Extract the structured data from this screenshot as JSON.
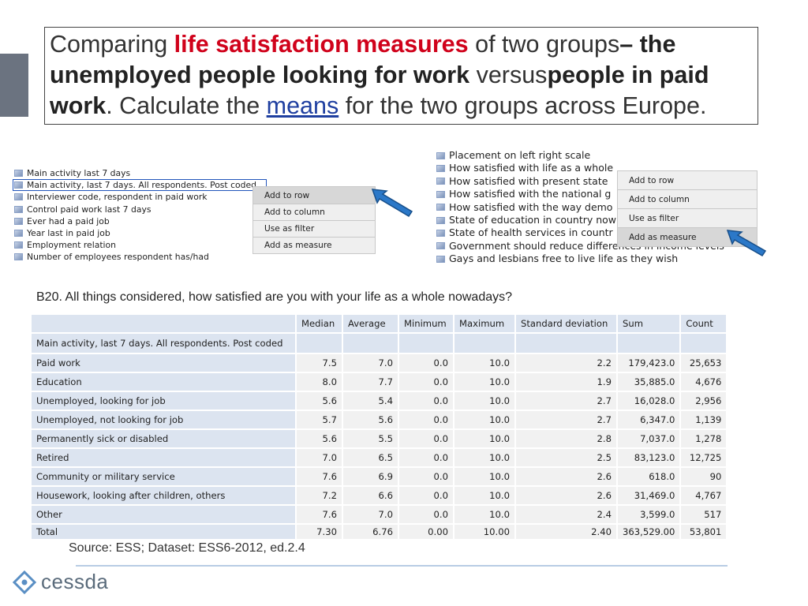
{
  "slide": {
    "title_parts": {
      "p1": "Comparing",
      "p2": "life satisfaction measures",
      "p3": "of two groups",
      "p4": "– the",
      "p5": "unemployed people looking for work",
      "p6": "versus",
      "p7": "people in paid work",
      "p8": ". Calculate the",
      "p9": "means",
      "p10": "for the two groups across Europe."
    },
    "question": "B20. All things considered, how satisfied are you with your life as a whole nowadays?",
    "source": "Source: ESS; Dataset: ESS6-2012, ed.2.4",
    "logo_text": "cessda"
  },
  "panel_left": {
    "variables": [
      "Main activity last 7 days",
      "Main activity, last 7 days. All respondents. Post coded",
      "Interviewer code, respondent in paid work",
      "Control paid work last 7 days",
      "Ever had a paid job",
      "Year last in paid job",
      "Employment relation",
      "Number of employees respondent has/had"
    ],
    "selected_index": 1,
    "menu": [
      "Add to row",
      "Add to column",
      "Use as filter",
      "Add as measure"
    ],
    "highlighted_index": 0
  },
  "panel_right": {
    "variables": [
      "Placement on left right scale",
      "How satisfied with life as a whole",
      "How satisfied with present state",
      "How satisfied with the national g",
      "How satisfied with the way demo",
      "State of education in country now",
      "State of health services in countr",
      "Government should reduce differences in income levels",
      "Gays and lesbians free to live life as they wish"
    ],
    "menu": [
      "Add to row",
      "Add to column",
      "Use as filter",
      "Add as measure"
    ],
    "highlighted_index": 3
  },
  "table": {
    "columns": [
      "Median",
      "Average",
      "Minimum",
      "Maximum",
      "Standard deviation",
      "Sum",
      "Count"
    ],
    "row_header": "Main activity, last 7 days. All respondents. Post coded",
    "rows": [
      {
        "label": "Paid work",
        "values": [
          "7.5",
          "7.0",
          "0.0",
          "10.0",
          "2.2",
          "179,423.0",
          "25,653"
        ]
      },
      {
        "label": "Education",
        "values": [
          "8.0",
          "7.7",
          "0.0",
          "10.0",
          "1.9",
          "35,885.0",
          "4,676"
        ]
      },
      {
        "label": "Unemployed, looking for job",
        "values": [
          "5.6",
          "5.4",
          "0.0",
          "10.0",
          "2.7",
          "16,028.0",
          "2,956"
        ]
      },
      {
        "label": "Unemployed, not looking for job",
        "values": [
          "5.7",
          "5.6",
          "0.0",
          "10.0",
          "2.7",
          "6,347.0",
          "1,139"
        ]
      },
      {
        "label": "Permanently sick or disabled",
        "values": [
          "5.6",
          "5.5",
          "0.0",
          "10.0",
          "2.8",
          "7,037.0",
          "1,278"
        ]
      },
      {
        "label": "Retired",
        "values": [
          "7.0",
          "6.5",
          "0.0",
          "10.0",
          "2.5",
          "83,123.0",
          "12,725"
        ]
      },
      {
        "label": "Community or military service",
        "values": [
          "7.6",
          "6.9",
          "0.0",
          "10.0",
          "2.6",
          "618.0",
          "90"
        ]
      },
      {
        "label": "Housework, looking after children, others",
        "values": [
          "7.2",
          "6.6",
          "0.0",
          "10.0",
          "2.6",
          "31,469.0",
          "4,767"
        ]
      },
      {
        "label": "Other",
        "values": [
          "7.6",
          "7.0",
          "0.0",
          "10.0",
          "2.4",
          "3,599.0",
          "517"
        ]
      },
      {
        "label": "Total",
        "values": [
          "7.30",
          "6.76",
          "0.00",
          "10.00",
          "2.40",
          "363,529.00",
          "53,801"
        ]
      }
    ]
  },
  "colors": {
    "title_accent": "#d0021b",
    "link": "#1f3fa0",
    "arrow": "#2b78c8",
    "table_header": "#dce4f0",
    "table_cell": "#f1f1f1"
  }
}
